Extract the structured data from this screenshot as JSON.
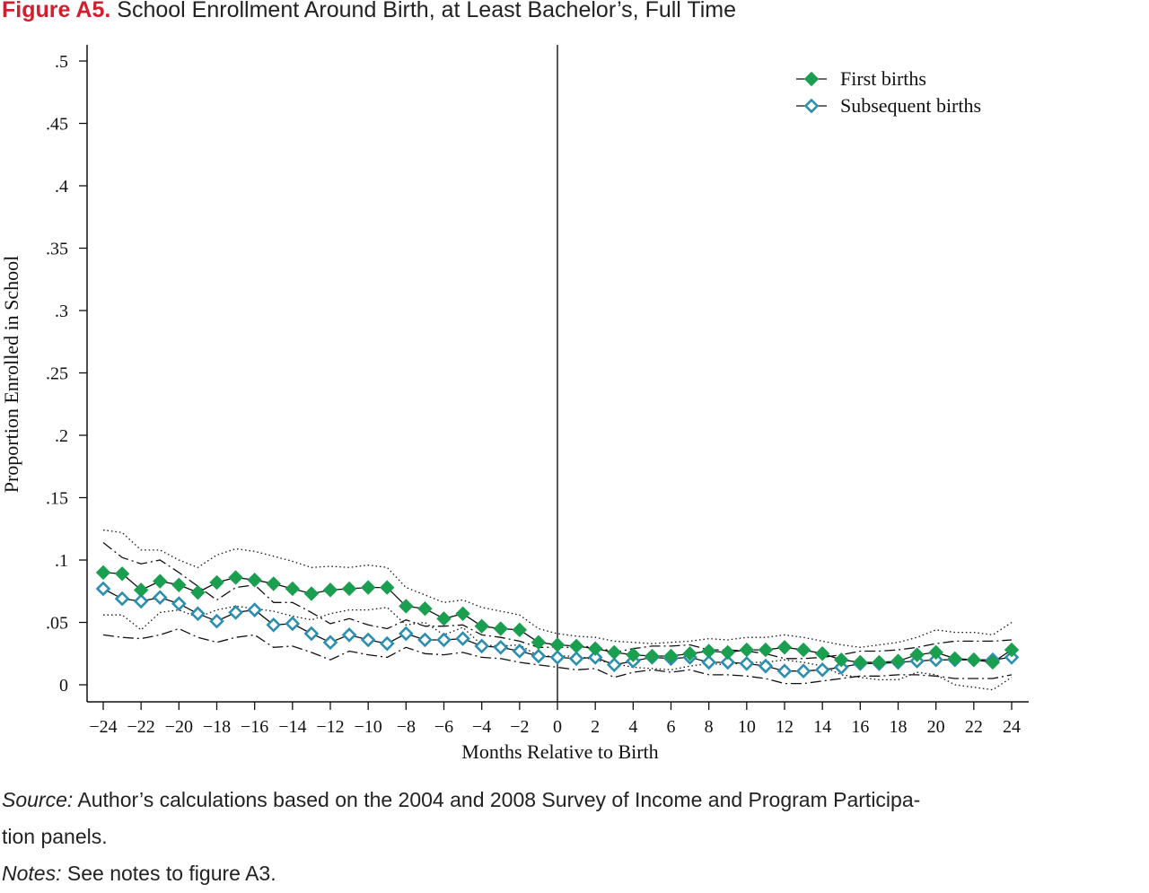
{
  "figure": {
    "label": "Figure A5.",
    "title": "School Enrollment Around Birth, at Least Bachelor’s, Full Time"
  },
  "source": {
    "label": "Source:",
    "text": "Author’s calculations based on the 2004 and 2008 Survey of Income and Program Participa-",
    "text2": "tion panels."
  },
  "notes": {
    "label": "Notes:",
    "text": "See notes to figure A3."
  },
  "colors": {
    "first_births": "#1a9e4f",
    "subsequent_births": "#2b8fb0",
    "title_label": "#d0202f"
  },
  "chart_data": {
    "type": "line",
    "xlabel": "Months Relative to Birth",
    "ylabel": "Proportion Enrolled in School",
    "xlim": [
      -24,
      24
    ],
    "ylim": [
      0,
      0.5
    ],
    "xticks": [
      -24,
      -22,
      -20,
      -18,
      -16,
      -14,
      -12,
      -10,
      -8,
      -6,
      -4,
      -2,
      0,
      2,
      4,
      6,
      8,
      10,
      12,
      14,
      16,
      18,
      20,
      22,
      24
    ],
    "xtick_labels": [
      "−24",
      "−22",
      "−20",
      "−18",
      "−16",
      "−14",
      "−12",
      "−10",
      "−8",
      "−6",
      "−4",
      "−2",
      "0",
      "2",
      "4",
      "6",
      "8",
      "10",
      "12",
      "14",
      "16",
      "18",
      "20",
      "22",
      "24"
    ],
    "yticks": [
      0,
      0.05,
      0.1,
      0.15,
      0.2,
      0.25,
      0.3,
      0.35,
      0.4,
      0.45,
      0.5
    ],
    "ytick_labels": [
      "0",
      ".05",
      ".1",
      ".15",
      ".2",
      ".25",
      ".3",
      ".35",
      ".4",
      ".45",
      ".5"
    ],
    "vline_x": 0,
    "legend_position": "top-right",
    "x": [
      -24,
      -23,
      -22,
      -21,
      -20,
      -19,
      -18,
      -17,
      -16,
      -15,
      -14,
      -13,
      -12,
      -11,
      -10,
      -9,
      -8,
      -7,
      -6,
      -5,
      -4,
      -3,
      -2,
      -1,
      0,
      1,
      2,
      3,
      4,
      5,
      6,
      7,
      8,
      9,
      10,
      11,
      12,
      13,
      14,
      15,
      16,
      17,
      18,
      19,
      20,
      21,
      22,
      23,
      24
    ],
    "series": [
      {
        "name": "First births",
        "marker": "filled-diamond",
        "values": [
          0.09,
          0.089,
          0.076,
          0.083,
          0.08,
          0.074,
          0.082,
          0.086,
          0.084,
          0.081,
          0.077,
          0.073,
          0.076,
          0.077,
          0.078,
          0.078,
          0.063,
          0.061,
          0.053,
          0.057,
          0.047,
          0.045,
          0.044,
          0.034,
          0.032,
          0.031,
          0.029,
          0.026,
          0.024,
          0.023,
          0.023,
          0.025,
          0.027,
          0.026,
          0.028,
          0.028,
          0.03,
          0.028,
          0.025,
          0.02,
          0.018,
          0.018,
          0.019,
          0.024,
          0.026,
          0.021,
          0.02,
          0.018,
          0.028
        ],
        "ci_upper": [
          0.124,
          0.122,
          0.108,
          0.108,
          0.1,
          0.094,
          0.104,
          0.109,
          0.107,
          0.103,
          0.099,
          0.094,
          0.095,
          0.094,
          0.096,
          0.094,
          0.078,
          0.072,
          0.066,
          0.068,
          0.062,
          0.059,
          0.056,
          0.045,
          0.041,
          0.039,
          0.038,
          0.035,
          0.034,
          0.033,
          0.034,
          0.035,
          0.037,
          0.036,
          0.038,
          0.038,
          0.04,
          0.038,
          0.035,
          0.032,
          0.03,
          0.032,
          0.034,
          0.038,
          0.044,
          0.042,
          0.042,
          0.04,
          0.05
        ],
        "ci_lower": [
          0.056,
          0.056,
          0.044,
          0.058,
          0.06,
          0.054,
          0.06,
          0.063,
          0.061,
          0.059,
          0.055,
          0.052,
          0.057,
          0.06,
          0.06,
          0.062,
          0.048,
          0.05,
          0.04,
          0.046,
          0.032,
          0.031,
          0.032,
          0.023,
          0.023,
          0.023,
          0.02,
          0.017,
          0.014,
          0.013,
          0.012,
          0.015,
          0.017,
          0.016,
          0.018,
          0.018,
          0.02,
          0.018,
          0.015,
          0.008,
          0.006,
          0.004,
          0.004,
          0.01,
          0.008,
          0.0,
          -0.002,
          -0.004,
          0.006
        ]
      },
      {
        "name": "Subsequent births",
        "marker": "hollow-diamond",
        "values": [
          0.077,
          0.069,
          0.067,
          0.07,
          0.065,
          0.057,
          0.051,
          0.058,
          0.06,
          0.048,
          0.049,
          0.041,
          0.034,
          0.04,
          0.036,
          0.033,
          0.041,
          0.036,
          0.036,
          0.037,
          0.031,
          0.03,
          0.027,
          0.023,
          0.022,
          0.021,
          0.022,
          0.016,
          0.019,
          0.022,
          0.021,
          0.022,
          0.018,
          0.018,
          0.017,
          0.015,
          0.011,
          0.011,
          0.012,
          0.014,
          0.017,
          0.017,
          0.018,
          0.019,
          0.02,
          0.02,
          0.02,
          0.02,
          0.022
        ],
        "ci_upper": [
          0.114,
          0.102,
          0.097,
          0.1,
          0.09,
          0.079,
          0.068,
          0.078,
          0.08,
          0.066,
          0.066,
          0.058,
          0.049,
          0.053,
          0.048,
          0.045,
          0.052,
          0.047,
          0.047,
          0.048,
          0.04,
          0.038,
          0.035,
          0.03,
          0.03,
          0.03,
          0.031,
          0.026,
          0.029,
          0.031,
          0.031,
          0.032,
          0.028,
          0.028,
          0.027,
          0.025,
          0.021,
          0.021,
          0.022,
          0.024,
          0.027,
          0.027,
          0.028,
          0.03,
          0.033,
          0.035,
          0.035,
          0.035,
          0.036
        ],
        "ci_lower": [
          0.04,
          0.038,
          0.037,
          0.04,
          0.045,
          0.038,
          0.034,
          0.038,
          0.04,
          0.03,
          0.031,
          0.026,
          0.02,
          0.027,
          0.024,
          0.022,
          0.03,
          0.025,
          0.024,
          0.026,
          0.022,
          0.021,
          0.018,
          0.016,
          0.014,
          0.012,
          0.013,
          0.006,
          0.01,
          0.012,
          0.01,
          0.012,
          0.008,
          0.008,
          0.007,
          0.005,
          0.001,
          0.001,
          0.003,
          0.005,
          0.007,
          0.007,
          0.008,
          0.008,
          0.007,
          0.005,
          0.005,
          0.005,
          0.008
        ]
      }
    ]
  }
}
